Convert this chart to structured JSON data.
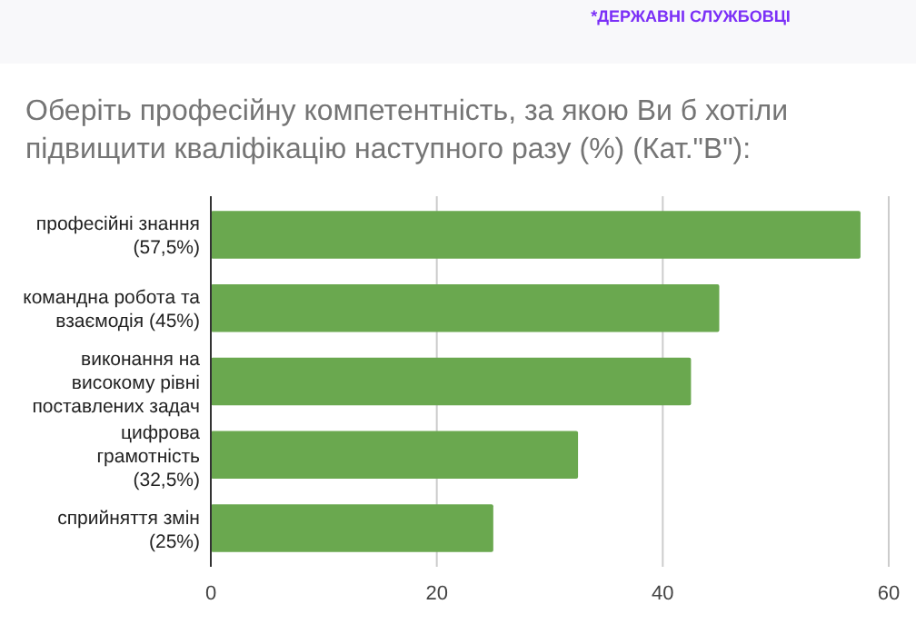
{
  "chart_data": {
    "type": "bar",
    "orientation": "horizontal",
    "title": "Оберіть професійну компетентність, за якою Ви б хотіли підвищити кваліфікацію наступного разу (%) (Кат.\"В\"):",
    "annotations": [
      "*ДЕРЖАВНІ СЛУЖБОВЦІ"
    ],
    "categories": [
      "професійні знання (57,5%)",
      "командна робота та взаємодія (45%)",
      "виконання на високому рівні поставлених задач",
      "цифрова грамотність (32,5%)",
      "сприйняття змін (25%)"
    ],
    "values": [
      57.5,
      45,
      42.5,
      32.5,
      25
    ],
    "color": "#6aa84f",
    "xlim": [
      0,
      60
    ],
    "xticks": [
      0,
      20,
      40,
      60
    ],
    "grid": "x"
  }
}
